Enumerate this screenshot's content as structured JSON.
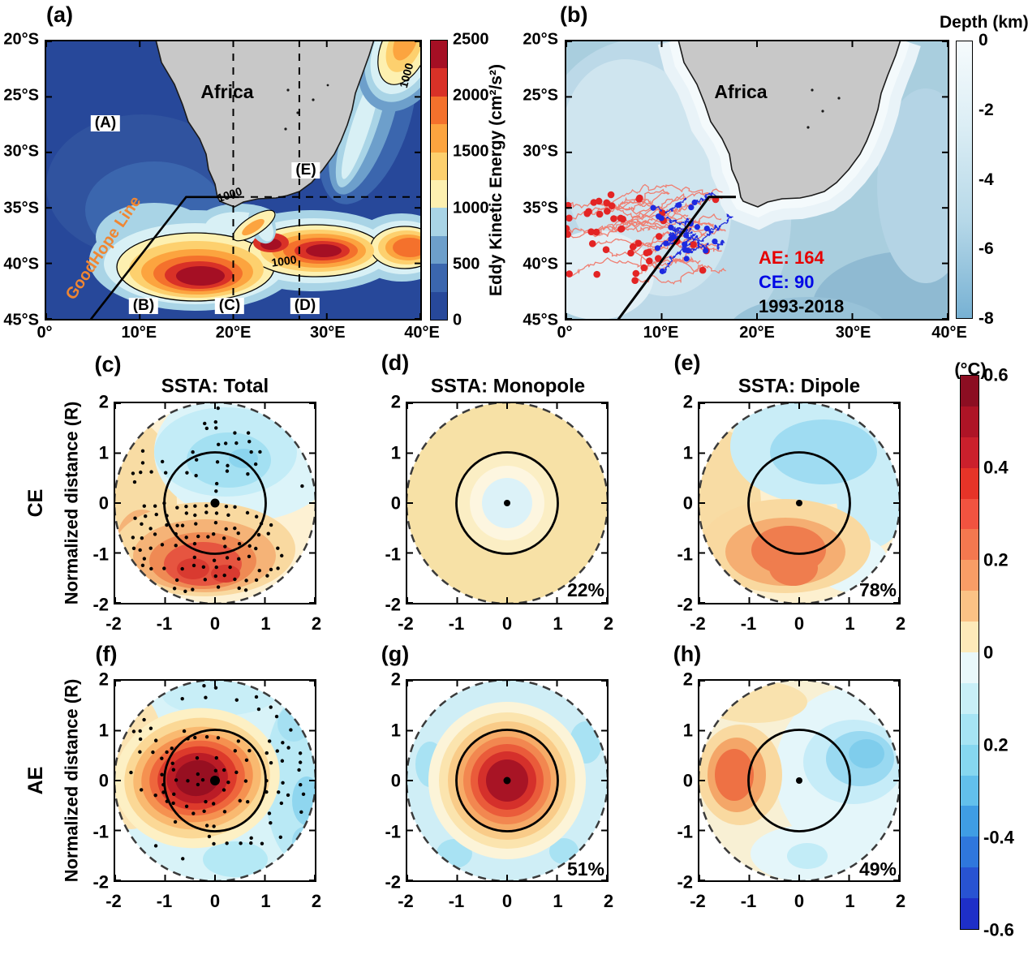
{
  "figure": {
    "panel_a": {
      "tag": "(a)",
      "africa_label": "Africa",
      "region_labels": {
        "A": "(A)",
        "B": "(B)",
        "C": "(C)",
        "D": "(D)",
        "E": "(E)"
      },
      "goodhope_label": "GoodHope Line",
      "contour_label": "1000",
      "x_ticks": [
        "0°",
        "10°E",
        "20°E",
        "30°E",
        "40°E"
      ],
      "y_ticks": [
        "20°S",
        "25°S",
        "30°S",
        "35°S",
        "40°S",
        "45°S"
      ],
      "colorbar_title": "Eddy Kinetic Energy (cm²/s²)",
      "colorbar_ticks": [
        "2500",
        "2000",
        "1500",
        "1000",
        "500",
        "0"
      ],
      "colorbar_colors": [
        "#a50f24",
        "#d93127",
        "#f4712c",
        "#fca43f",
        "#fdd06e",
        "#fdf0b0",
        "#a9d4e6",
        "#6d9fcb",
        "#3b66ae",
        "#27489a"
      ]
    },
    "panel_b": {
      "tag": "(b)",
      "africa_label": "Africa",
      "ae_count": "AE: 164",
      "ce_count": "CE: 90",
      "period": "1993-2018",
      "x_ticks": [
        "0°",
        "10°E",
        "20°E",
        "30°E",
        "40°E"
      ],
      "y_ticks": [
        "20°S",
        "25°S",
        "30°S",
        "35°S",
        "40°S",
        "45°S"
      ],
      "colorbar_title": "Depth (km)",
      "colorbar_ticks": [
        "0",
        "-2",
        "-4",
        "-6",
        "-8"
      ],
      "colorbar_gradient": [
        "#f6fbfd",
        "#dceef5",
        "#b6d8e8",
        "#77b1d3"
      ]
    },
    "composites": {
      "titles": [
        "SSTA: Total",
        "SSTA: Monopole",
        "SSTA: Dipole"
      ],
      "row_labels": [
        "CE",
        "AE"
      ],
      "y_axis_label": "Normalized distance (R)",
      "tags": [
        "(c)",
        "(d)",
        "(e)",
        "(f)",
        "(g)",
        "(h)"
      ],
      "percents": {
        "d": "22%",
        "e": "78%",
        "g": "51%",
        "h": "49%"
      },
      "x_ticks": [
        "-2",
        "-1",
        "0",
        "1",
        "2"
      ],
      "y_ticks": [
        "2",
        "1",
        "0",
        "-1",
        "-2"
      ],
      "colorbar_title": "(°C)",
      "colorbar_ticks": [
        "0.6",
        "0.4",
        "0.2",
        "0",
        "0.2",
        "-0.4",
        "-0.6"
      ],
      "colorbar_colors": [
        "#8c0e22",
        "#ae1426",
        "#cb202c",
        "#e63428",
        "#f15340",
        "#f4784f",
        "#f89d66",
        "#fbc285",
        "#fdeab9",
        "#e9f8fa",
        "#c8eff7",
        "#a6e4f4",
        "#86d7f0",
        "#62c0ec",
        "#3f9de4",
        "#2f77dc",
        "#2853d2",
        "#1e2fc8"
      ]
    },
    "colors": {
      "ae_red": "#e60000",
      "ce_blue": "#0008e6",
      "goodhope_orange": "#ef8632",
      "land_grey": "#c8c8c8"
    },
    "chart_data": [
      {
        "id": "a",
        "type": "heatmap",
        "quantity": "Eddy Kinetic Energy (cm²/s²)",
        "x_range": "0E to 40E",
        "y_range": "20S to 45S",
        "colorbar_range": [
          0,
          2500
        ],
        "colorbar_ticks": [
          0,
          500,
          1000,
          1500,
          2000,
          2500
        ],
        "regions": [
          "(A)",
          "(B)",
          "(C)",
          "(D)",
          "(E)"
        ],
        "labeled_contour": 1000,
        "line": "GoodHope Line",
        "land": "Africa"
      },
      {
        "id": "b",
        "type": "map-trajectories",
        "quantity": "Depth (km)",
        "x_range": "0E to 40E",
        "y_range": "20S to 45S",
        "colorbar_range": [
          -8,
          0
        ],
        "colorbar_ticks": [
          0,
          -2,
          -4,
          -6,
          -8
        ],
        "anticyclonic_eddies": 164,
        "cyclonic_eddies": 90,
        "period": "1993-2018",
        "land": "Africa"
      },
      {
        "id": "c",
        "type": "heatmap",
        "row": "CE",
        "title": "SSTA: Total",
        "axis_range": [
          -2,
          2
        ],
        "stippled": true
      },
      {
        "id": "d",
        "type": "heatmap",
        "row": "CE",
        "title": "SSTA: Monopole",
        "axis_range": [
          -2,
          2
        ],
        "variance_percent": 22
      },
      {
        "id": "e",
        "type": "heatmap",
        "row": "CE",
        "title": "SSTA: Dipole",
        "axis_range": [
          -2,
          2
        ],
        "variance_percent": 78
      },
      {
        "id": "f",
        "type": "heatmap",
        "row": "AE",
        "title": "SSTA: Total",
        "axis_range": [
          -2,
          2
        ],
        "stippled": true
      },
      {
        "id": "g",
        "type": "heatmap",
        "row": "AE",
        "title": "SSTA: Monopole",
        "axis_range": [
          -2,
          2
        ],
        "variance_percent": 51
      },
      {
        "id": "h",
        "type": "heatmap",
        "row": "AE",
        "title": "SSTA: Dipole",
        "axis_range": [
          -2,
          2
        ],
        "variance_percent": 49
      },
      {
        "id": "ssta_colorbar",
        "type": "colorbar",
        "units": "°C",
        "range": [
          -0.6,
          0.6
        ],
        "tick_labels": [
          "0.6",
          "0.4",
          "0.2",
          "0",
          "0.2",
          "-0.4",
          "-0.6"
        ]
      }
    ]
  }
}
